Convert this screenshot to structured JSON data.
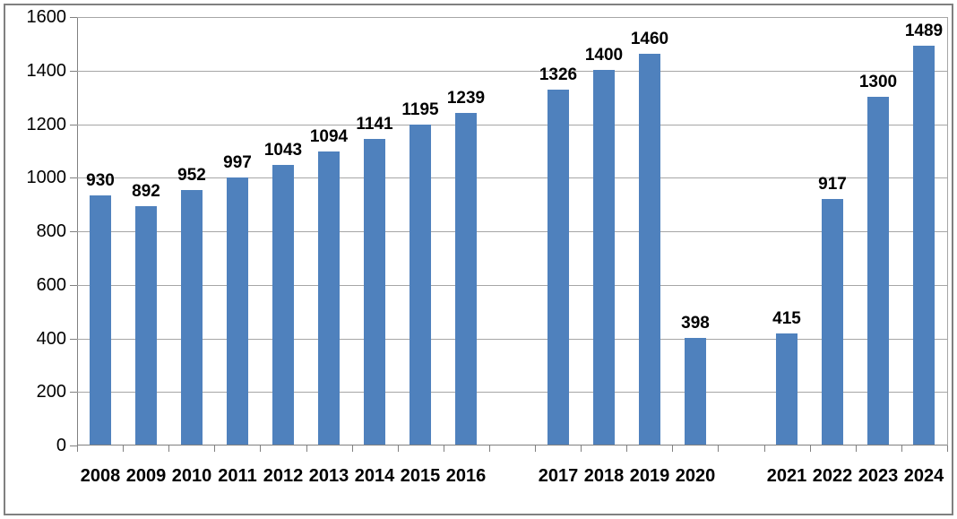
{
  "chart_data": {
    "type": "bar",
    "title": "",
    "xlabel": "",
    "ylabel": "",
    "categories": [
      "2008",
      "2009",
      "2010",
      "2011",
      "2012",
      "2013",
      "2014",
      "2015",
      "2016",
      "",
      "2017",
      "2018",
      "2019",
      "2020",
      "",
      "2021",
      "2022",
      "2023",
      "2024"
    ],
    "values": [
      930,
      892,
      952,
      997,
      1043,
      1094,
      1141,
      1195,
      1239,
      null,
      1326,
      1400,
      1460,
      398,
      null,
      415,
      917,
      1300,
      1489
    ],
    "ylim": [
      0,
      1600
    ],
    "ytick_step": 200,
    "yticks": [
      0,
      200,
      400,
      600,
      800,
      1000,
      1200,
      1400,
      1600
    ],
    "grid": true,
    "legend": "none",
    "data_labels": true,
    "colors": {
      "bar": "#4f81bd",
      "gridline": "#a6a6a6",
      "axis": "#808080",
      "frame": "#808080",
      "text": "#000000",
      "background": "#ffffff"
    }
  }
}
